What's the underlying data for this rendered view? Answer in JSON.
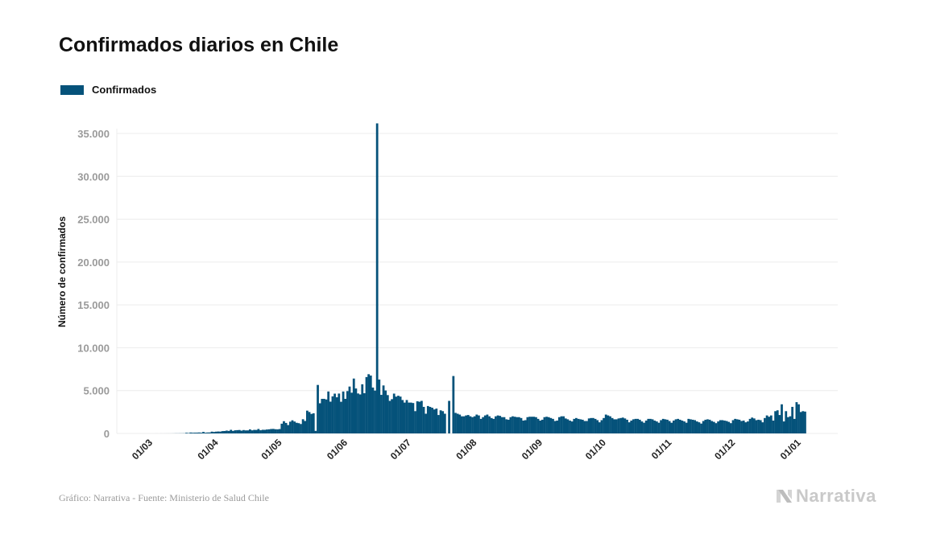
{
  "title": "Confirmados diarios en Chile",
  "footer": "Gráfico: Narrativa - Fuente: Ministerio de Salud Chile",
  "logo_text": "Narrativa",
  "colors": {
    "bar": "#05527a",
    "grid": "#ececec",
    "tick_label": "#9a9a9a"
  },
  "chart_data": {
    "type": "bar",
    "title": "Confirmados diarios en Chile",
    "ylabel": "Número de confirmados",
    "xlabel": "",
    "ylim": [
      0,
      36500
    ],
    "y_ticks": [
      0,
      5000,
      10000,
      15000,
      20000,
      25000,
      30000,
      35000
    ],
    "y_tick_labels": [
      "0",
      "5.000",
      "10.000",
      "15.000",
      "20.000",
      "25.000",
      "30.000",
      "35.000"
    ],
    "x_tick_labels": [
      "01/03",
      "01/04",
      "01/05",
      "01/06",
      "01/07",
      "01/08",
      "01/09",
      "01/10",
      "01/11",
      "01/12",
      "01/01"
    ],
    "grid": "horizontal",
    "legend_position": "top-left",
    "series": [
      {
        "name": "Confirmados",
        "months": [
          {
            "month": "03",
            "first_day": 3,
            "values": [
              1,
              0,
              2,
              1,
              2,
              3,
              3,
              4,
              6,
              10,
              10,
              13,
              14,
              19,
              75,
              46,
              104,
              82,
              92,
              95,
              108,
              86,
              176,
              88,
              111,
              115,
              208,
              172,
              209
            ]
          },
          {
            "month": "04",
            "first_day": 1,
            "values": [
              227,
              216,
              270,
              284,
              332,
              295,
              421,
              297,
              368,
              386,
              403,
              326,
              395,
              356,
              358,
              473,
              362,
              417,
              408,
              521,
              374,
              427,
              422,
              461,
              482,
              520,
              531,
              493,
              479,
              515
            ]
          },
          {
            "month": "05",
            "first_day": 1,
            "values": [
              1138,
              1427,
              1228,
              980,
              1373,
              1533,
              1391,
              1247,
              1197,
              1101,
              1658,
              1456,
              2660,
              2502,
              2278,
              2353,
              300,
              5659,
              3520,
              4038,
              4039,
              3964,
              4895,
              3709,
              4328,
              4645,
              4220,
              4654,
              3695,
              4895,
              4038
            ]
          },
          {
            "month": "06",
            "first_day": 1,
            "values": [
              4942,
              5471,
              4753,
              6405,
              5246,
              4664,
              4552,
              5737,
              4696,
              6580,
              6913,
              6754,
              5355,
              5000,
              36179,
              6290,
              4500,
              5600,
              5013,
              4475,
              3804,
              4000,
              4648,
              4296,
              4400,
              4300,
              3900,
              3600,
              3900,
              3600
            ]
          },
          {
            "month": "07",
            "first_day": 1,
            "values": [
              3600,
              3550,
              2600,
              3750,
              3700,
              3800,
              3100,
              2300,
              3200,
              3100,
              3000,
              2800,
              2900,
              2150,
              2700,
              2600,
              2300,
              0,
              3800,
              0,
              6700,
              2400,
              2300,
              2200,
              2000,
              2000,
              2100,
              2150,
              2000,
              1900,
              2000
            ]
          },
          {
            "month": "08",
            "first_day": 1,
            "values": [
              2200,
              2100,
              1700,
              1900,
              2100,
              2200,
              2000,
              1800,
              1700,
              2000,
              2100,
              2050,
              1900,
              1900,
              1650,
              1600,
              1900,
              2000,
              1950,
              1900,
              1900,
              1800,
              1500,
              1550,
              1900,
              1950,
              1950,
              1950,
              1900,
              1700,
              1500
            ]
          },
          {
            "month": "09",
            "first_day": 1,
            "values": [
              1600,
              1900,
              1950,
              1900,
              1800,
              1700,
              1450,
              1500,
              1900,
              2000,
              2000,
              1750,
              1650,
              1500,
              1400,
              1700,
              1800,
              1700,
              1650,
              1600,
              1450,
              1450,
              1750,
              1800,
              1800,
              1700,
              1550,
              1300,
              1550,
              1800
            ]
          },
          {
            "month": "10",
            "first_day": 1,
            "values": [
              2200,
              2100,
              2000,
              1800,
              1650,
              1650,
              1750,
              1800,
              1850,
              1750,
              1600,
              1300,
              1500,
              1650,
              1700,
              1700,
              1600,
              1400,
              1250,
              1500,
              1700,
              1700,
              1650,
              1500,
              1400,
              1250,
              1550,
              1700,
              1650,
              1600,
              1450
            ]
          },
          {
            "month": "11",
            "first_day": 1,
            "values": [
              1250,
              1500,
              1650,
              1700,
              1600,
              1500,
              1400,
              1250,
              1700,
              1650,
              1600,
              1550,
              1400,
              1300,
              1150,
              1450,
              1600,
              1650,
              1600,
              1450,
              1350,
              1200,
              1400,
              1550,
              1550,
              1500,
              1450,
              1350,
              1200,
              1550
            ]
          },
          {
            "month": "12",
            "first_day": 1,
            "values": [
              1700,
              1650,
              1600,
              1450,
              1500,
              1300,
              1400,
              1700,
              1850,
              1750,
              1550,
              1600,
              1550,
              1300,
              1800,
              2100,
              1950,
              2100,
              1500,
              2600,
              2700,
              2150,
              3400,
              1400,
              2600,
              1900,
              2000,
              3100,
              1700,
              3650,
              3400
            ]
          },
          {
            "month": "01",
            "first_day": 1,
            "values": [
              2500,
              2600,
              2550
            ]
          }
        ]
      }
    ]
  }
}
